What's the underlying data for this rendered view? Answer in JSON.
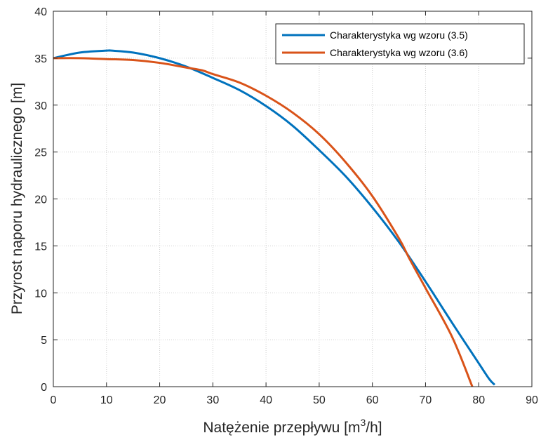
{
  "chart_data": {
    "type": "line",
    "title": "",
    "xlabel": {
      "prefix": "Natężenie przepływu [m",
      "sup": "3",
      "suffix": "/h]"
    },
    "ylabel": "Przyrost naporu hydraulicznego [m]",
    "xlim": [
      0,
      90
    ],
    "ylim": [
      0,
      40
    ],
    "xticks": [
      "0",
      "10",
      "20",
      "30",
      "40",
      "50",
      "60",
      "70",
      "80",
      "90"
    ],
    "yticks": [
      "0",
      "5",
      "10",
      "15",
      "20",
      "25",
      "30",
      "35",
      "40"
    ],
    "grid": true,
    "legend_position": "top-right",
    "series": [
      {
        "name": "Charakterystyka wg wzoru (3.5)",
        "color": "#0072BD",
        "x": [
          0,
          5,
          10,
          11,
          15,
          20,
          25,
          30,
          35,
          40,
          45,
          50,
          55,
          60,
          65,
          70,
          75,
          80,
          82,
          83
        ],
        "y": [
          35.0,
          35.6,
          35.8,
          35.8,
          35.6,
          35.0,
          34.1,
          32.9,
          31.6,
          29.9,
          27.8,
          25.2,
          22.4,
          19.1,
          15.4,
          11.2,
          6.8,
          2.5,
          0.8,
          0.2
        ]
      },
      {
        "name": "Charakterystyka wg wzoru (3.6)",
        "color": "#D95319",
        "x": [
          0,
          5,
          10,
          15,
          20,
          25,
          28,
          30,
          35,
          40,
          45,
          50,
          55,
          60,
          65,
          67,
          70,
          75,
          78.8
        ],
        "y": [
          35.0,
          35.0,
          34.9,
          34.8,
          34.5,
          34.0,
          33.7,
          33.3,
          32.4,
          31.0,
          29.2,
          26.9,
          23.9,
          20.3,
          15.8,
          13.6,
          10.5,
          5.3,
          0.0
        ]
      }
    ]
  }
}
